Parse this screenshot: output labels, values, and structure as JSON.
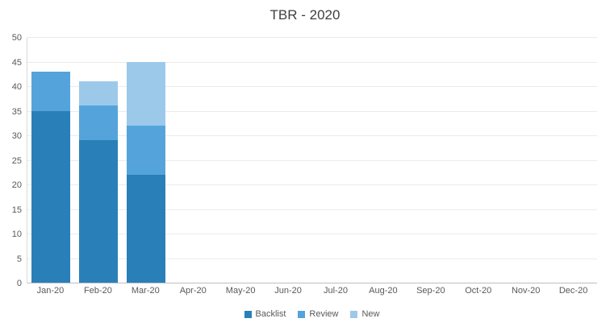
{
  "chart_data": {
    "type": "bar",
    "stacked": true,
    "title": "TBR - 2020",
    "categories": [
      "Jan-20",
      "Feb-20",
      "Mar-20",
      "Apr-20",
      "May-20",
      "Jun-20",
      "Jul-20",
      "Aug-20",
      "Sep-20",
      "Oct-20",
      "Nov-20",
      "Dec-20"
    ],
    "series": [
      {
        "name": "Backlist",
        "color": "#2980b9",
        "values": [
          35,
          29,
          22,
          0,
          0,
          0,
          0,
          0,
          0,
          0,
          0,
          0
        ]
      },
      {
        "name": "Review",
        "color": "#54a4db",
        "values": [
          8,
          7,
          10,
          0,
          0,
          0,
          0,
          0,
          0,
          0,
          0,
          0
        ]
      },
      {
        "name": "New",
        "color": "#9cc9ea",
        "values": [
          0,
          5,
          13,
          0,
          0,
          0,
          0,
          0,
          0,
          0,
          0,
          0
        ]
      }
    ],
    "totals": [
      43,
      41,
      45,
      0,
      0,
      0,
      0,
      0,
      0,
      0,
      0,
      0
    ],
    "xlabel": "",
    "ylabel": "",
    "ylim": [
      0,
      50
    ],
    "yticks": [
      0,
      5,
      10,
      15,
      20,
      25,
      30,
      35,
      40,
      45,
      50
    ],
    "grid": true,
    "legend_position": "bottom-center"
  },
  "style_colors": {
    "title_text": "#404040",
    "axis_label_text": "#595959",
    "gridline": "#ebebeb",
    "x_axis_line": "#bfbfbf",
    "y_axis_line": "#d9d9d9",
    "background": "#ffffff"
  }
}
